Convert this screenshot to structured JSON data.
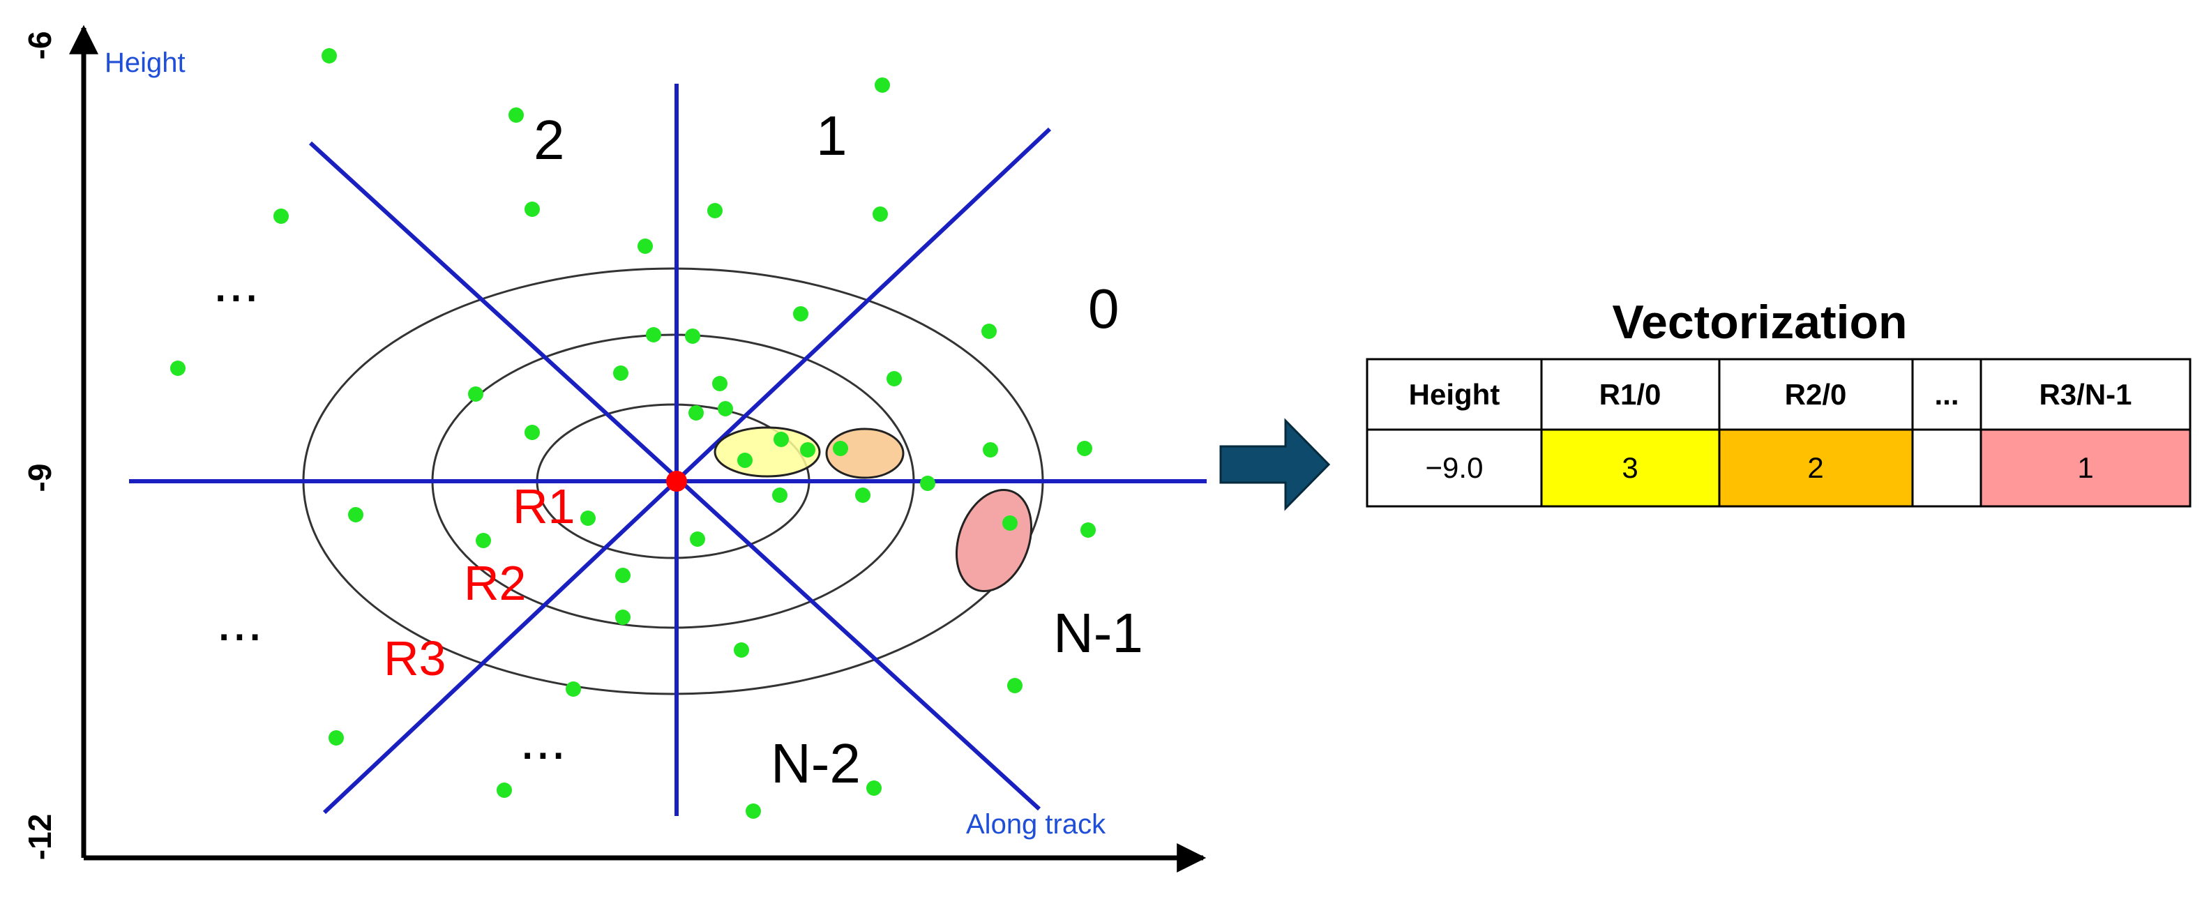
{
  "y_axis": {
    "label": "Height",
    "ticks": [
      "-6",
      "-9",
      "-12"
    ]
  },
  "x_axis": {
    "label": "Along track"
  },
  "sectors": {
    "s0": "0",
    "s1": "1",
    "s2": "2",
    "dots_upper_left": "...",
    "dots_left": "...",
    "dots_lower_left": "...",
    "sN2": "N-2",
    "sN1": "N-1"
  },
  "rings": [
    "R1",
    "R2",
    "R3"
  ],
  "colors": {
    "axis_lines": "#1a1fbf",
    "ring_labels": "#ff0000",
    "points": "#22e622",
    "center": "#ff0000",
    "highlight_yellow": "#ffff00",
    "highlight_orange": "#ffc000",
    "highlight_pink": "#ff9999",
    "arrow": "#0e4a6b"
  },
  "table": {
    "title": "Vectorization",
    "headers": [
      "Height",
      "R1/0",
      "R2/0",
      "...",
      "R3/N-1"
    ],
    "row": [
      "−9.0",
      "3",
      "2",
      "",
      "1"
    ]
  }
}
